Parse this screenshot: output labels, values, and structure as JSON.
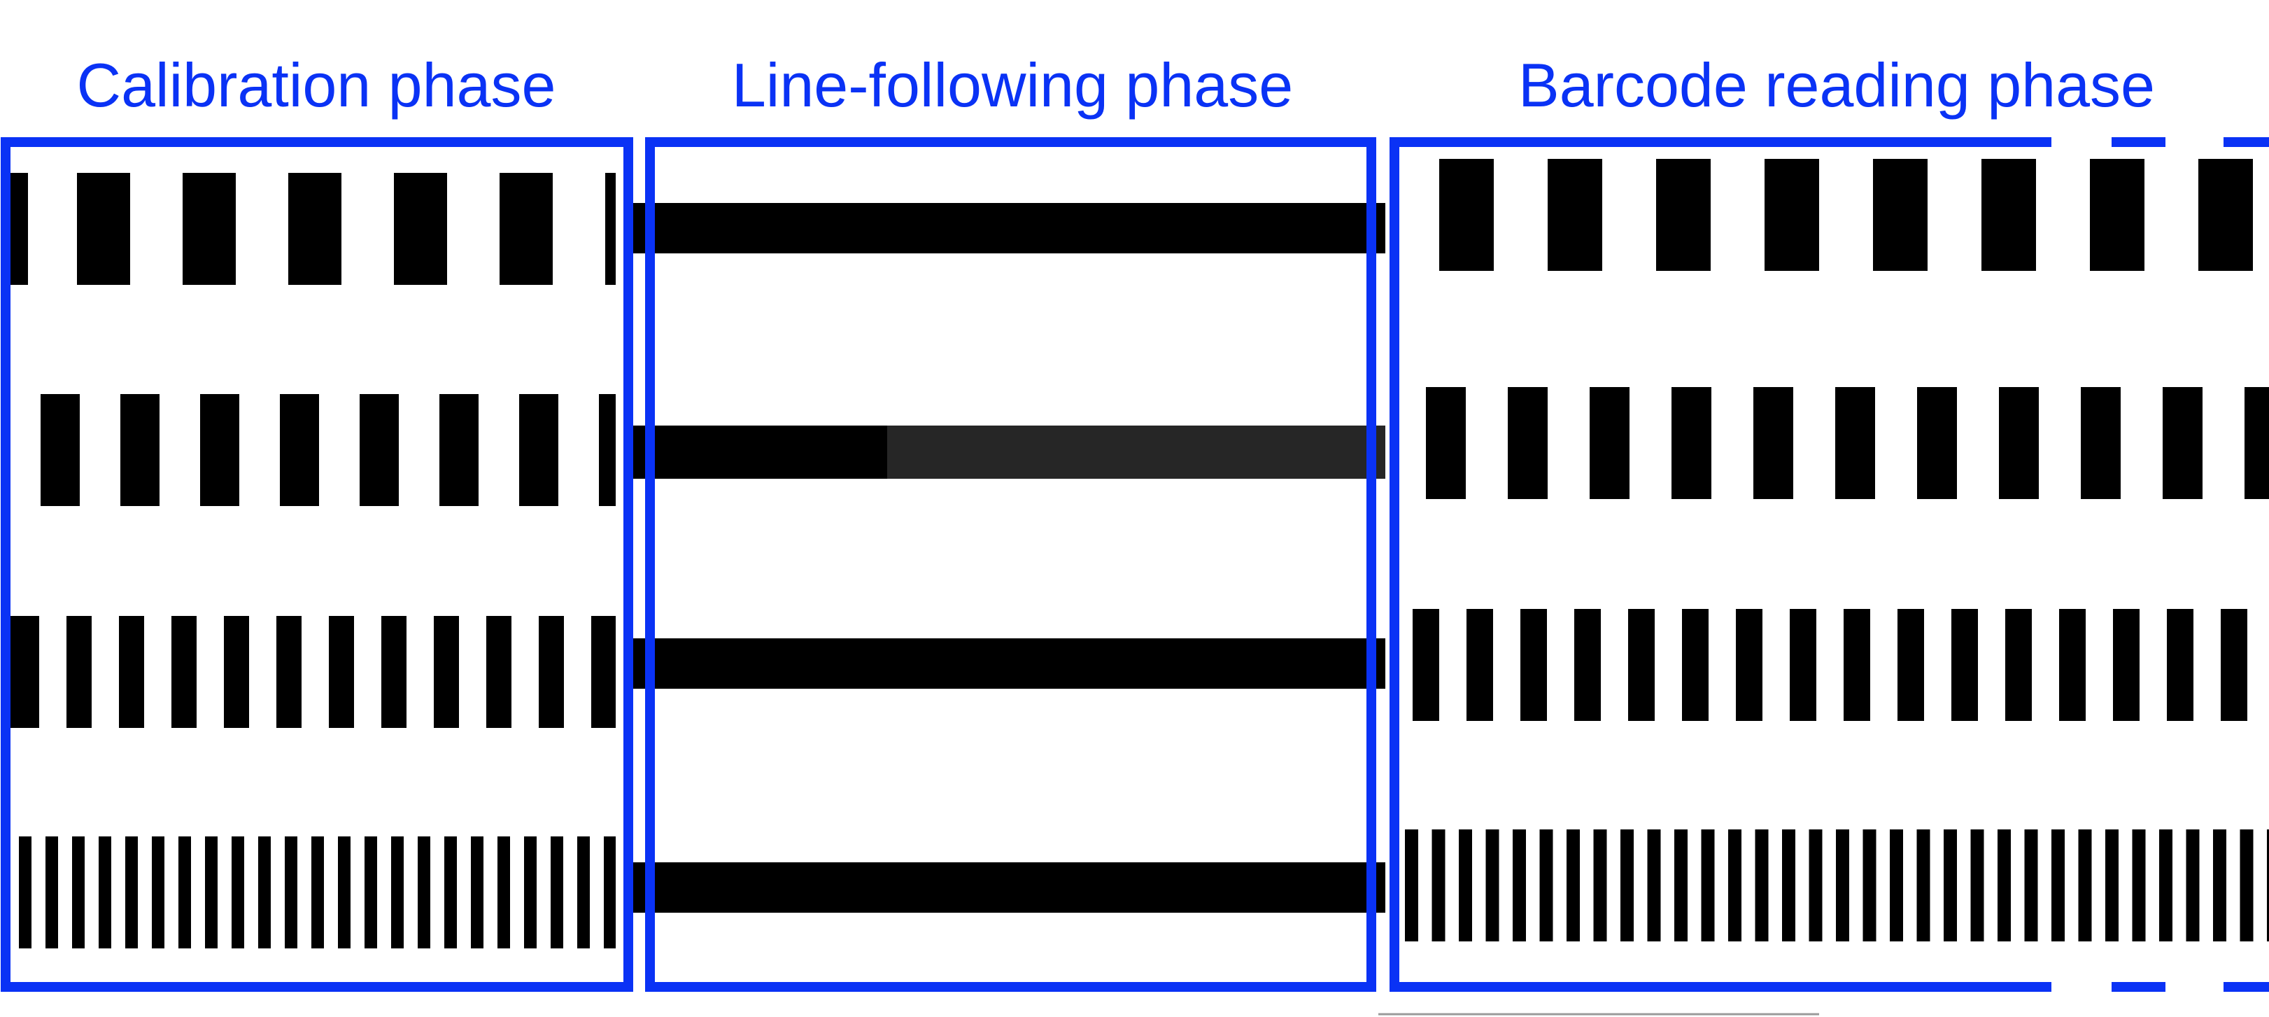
{
  "colors": {
    "frame": "#0a32f5",
    "label": "#0a32f5",
    "bar": "#000000",
    "bar_faded": "#262626",
    "background": "#ffffff"
  },
  "phases": [
    {
      "key": "calibration",
      "label": "Calibration phase",
      "pattern": "dashed-tracks"
    },
    {
      "key": "line_following",
      "label": "Line-following phase",
      "pattern": "solid-lines"
    },
    {
      "key": "barcode_reading",
      "label": "Barcode reading phase",
      "pattern": "dashed-tracks"
    }
  ],
  "tracks": [
    {
      "row": 1,
      "pattern": "wide-dashes"
    },
    {
      "row": 2,
      "pattern": "medium-dashes"
    },
    {
      "row": 3,
      "pattern": "narrow-dashes"
    },
    {
      "row": 4,
      "pattern": "very-narrow-dashes"
    }
  ],
  "frame_style": {
    "calibration": "solid",
    "line_following": "solid",
    "barcode_reading": "open-right-dashed"
  }
}
